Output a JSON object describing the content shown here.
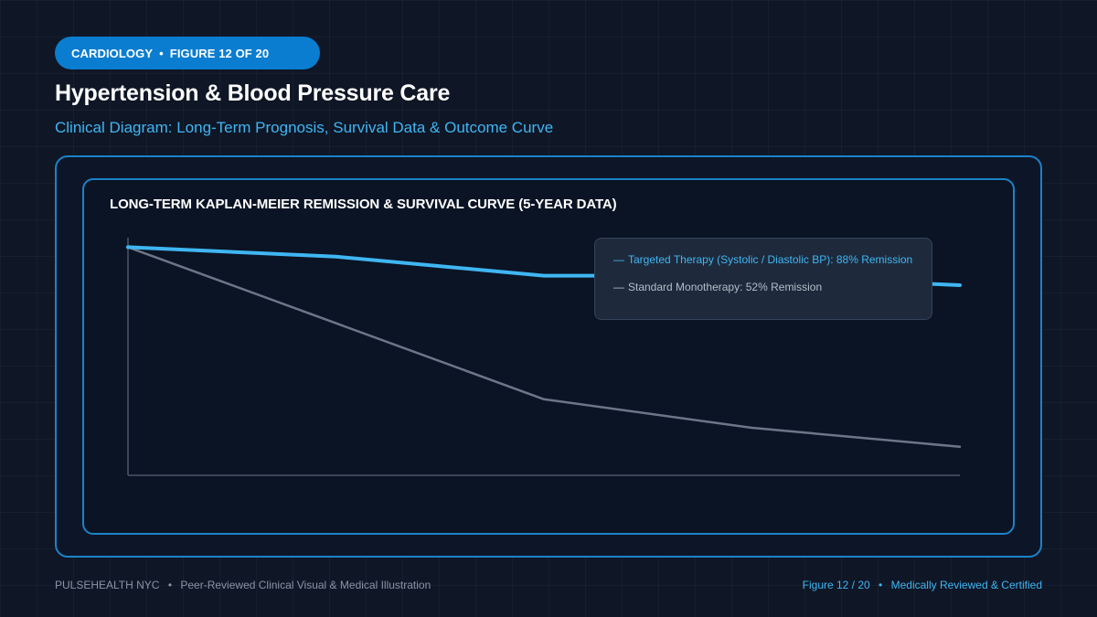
{
  "header": {
    "badge_category": "CARDIOLOGY",
    "badge_separator": "•",
    "badge_figure": "FIGURE 12 OF 20",
    "title": "Hypertension & Blood Pressure Care",
    "subtitle": "Clinical Diagram: Long-Term Prognosis, Survival Data & Outcome Curve"
  },
  "chart_data": {
    "type": "line",
    "title": "LONG-TERM KAPLAN-MEIER REMISSION & SURVIVAL CURVE (5-YEAR DATA)",
    "xlabel": "",
    "ylabel": "",
    "x": [
      0,
      1,
      2,
      3,
      4
    ],
    "xlim": [
      0,
      4
    ],
    "ylim": [
      0,
      100
    ],
    "grid": false,
    "legend_position": "top-right",
    "series": [
      {
        "name": "Targeted Therapy (Systolic / Diastolic BP): 88% Remission",
        "values": [
          96,
          92,
          84,
          84,
          80
        ],
        "color": "#3fb6f2"
      },
      {
        "name": "Standard Monotherapy: 52% Remission",
        "values": [
          96,
          64,
          32,
          20,
          12
        ],
        "color": "#6b7789"
      }
    ]
  },
  "footer": {
    "left_brand": "PULSEHEALTH NYC",
    "left_separator": "•",
    "left_text": "Peer-Reviewed Clinical Visual & Medical Illustration",
    "right_figure": "Figure 12 / 20",
    "right_separator": "•",
    "right_text": "Medically Reviewed & Certified"
  },
  "colors": {
    "background": "#0f1626",
    "accent": "#0a7dd0",
    "panel_border": "#1b83c8",
    "primary_series": "#3fb6f2",
    "secondary_series": "#6b7789"
  }
}
